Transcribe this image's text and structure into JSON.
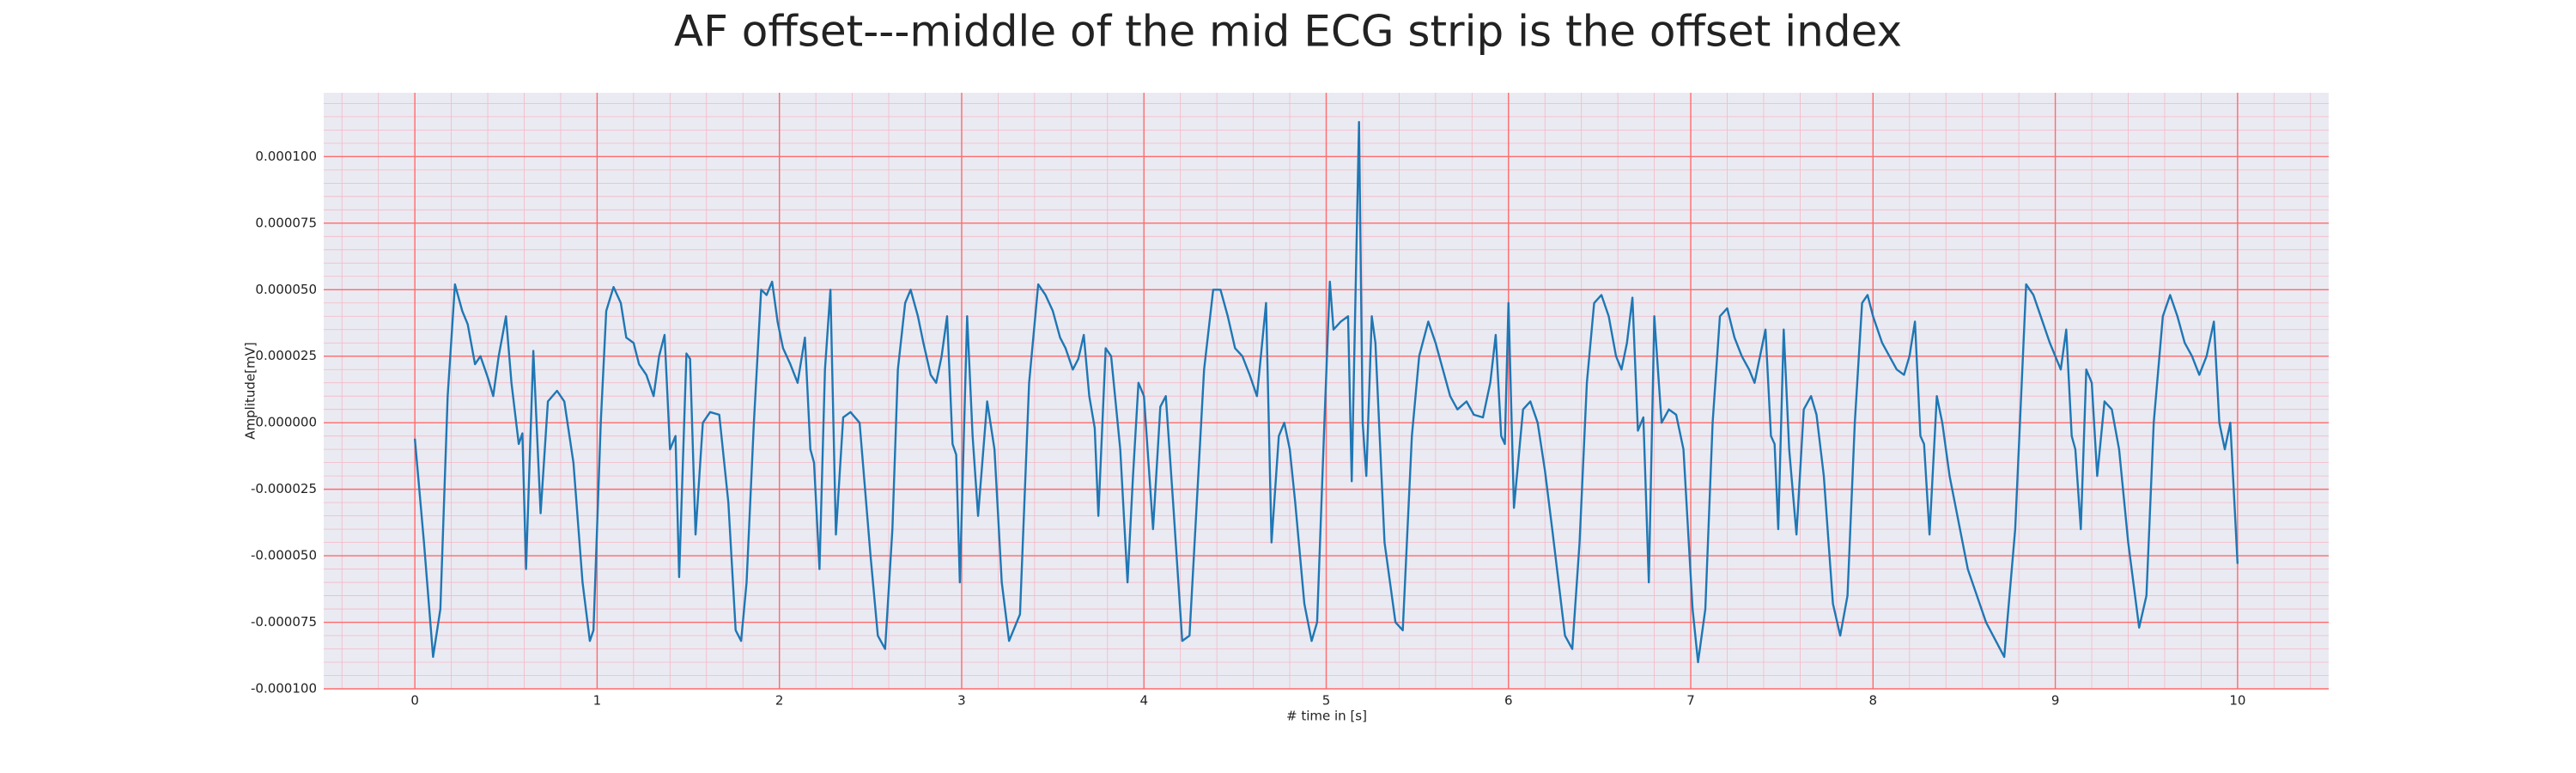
{
  "chart_data": {
    "type": "line",
    "title": "AF offset---middle of the mid ECG strip is the offset index",
    "xlabel": "# time in [s]",
    "ylabel": "Amplitude[mV]",
    "color": "#1f77b4",
    "background": "#eaeaf2",
    "grid": true,
    "grid_color": "#ff6b6b",
    "minor_grid": true,
    "minor_grid_color": "#f5b8c4",
    "minor_divisions": 5,
    "xlim": [
      -0.5,
      10.5
    ],
    "xticks": [
      0,
      1,
      2,
      3,
      4,
      5,
      6,
      7,
      8,
      9,
      10
    ],
    "ylim": [
      -0.0001,
      0.000124
    ],
    "yticks": [
      {
        "value": -0.0001,
        "label": "-0.000100"
      },
      {
        "value": -7.5e-05,
        "label": "-0.000075"
      },
      {
        "value": -5e-05,
        "label": "-0.000050"
      },
      {
        "value": -2.5e-05,
        "label": "-0.000025"
      },
      {
        "value": 0,
        "label": "0.000000"
      },
      {
        "value": 2.5e-05,
        "label": "0.000025"
      },
      {
        "value": 5e-05,
        "label": "0.000050"
      },
      {
        "value": 7.5e-05,
        "label": "0.000075"
      },
      {
        "value": 0.0001,
        "label": "0.000100"
      }
    ],
    "x": [
      0,
      0.05,
      0.1,
      0.14,
      0.18,
      0.22,
      0.26,
      0.29,
      0.33,
      0.36,
      0.4,
      0.43,
      0.46,
      0.5,
      0.53,
      0.57,
      0.59,
      0.61,
      0.65,
      0.69,
      0.73,
      0.78,
      0.82,
      0.87,
      0.92,
      0.96,
      0.98,
      1.02,
      1.05,
      1.09,
      1.13,
      1.16,
      1.2,
      1.23,
      1.27,
      1.31,
      1.34,
      1.37,
      1.4,
      1.43,
      1.45,
      1.49,
      1.51,
      1.54,
      1.58,
      1.62,
      1.67,
      1.72,
      1.76,
      1.79,
      1.82,
      1.86,
      1.9,
      1.93,
      1.96,
      1.99,
      2.02,
      2.06,
      2.1,
      2.14,
      2.17,
      2.19,
      2.22,
      2.25,
      2.28,
      2.31,
      2.35,
      2.39,
      2.44,
      2.5,
      2.54,
      2.58,
      2.62,
      2.65,
      2.69,
      2.72,
      2.76,
      2.79,
      2.83,
      2.86,
      2.89,
      2.92,
      2.95,
      2.97,
      2.99,
      3.03,
      3.06,
      3.09,
      3.14,
      3.18,
      3.22,
      3.26,
      3.32,
      3.37,
      3.42,
      3.46,
      3.5,
      3.54,
      3.57,
      3.61,
      3.64,
      3.67,
      3.7,
      3.73,
      3.75,
      3.79,
      3.82,
      3.87,
      3.91,
      3.94,
      3.97,
      4,
      4.03,
      4.05,
      4.09,
      4.12,
      4.16,
      4.21,
      4.25,
      4.29,
      4.33,
      4.38,
      4.42,
      4.46,
      4.5,
      4.54,
      4.58,
      4.62,
      4.67,
      4.7,
      4.74,
      4.77,
      4.8,
      4.83,
      4.88,
      4.92,
      4.95,
      4.99,
      5.02,
      5.04,
      5.08,
      5.12,
      5.14,
      5.18,
      5.2,
      5.22,
      5.25,
      5.27,
      5.32,
      5.38,
      5.42,
      5.47,
      5.51,
      5.56,
      5.6,
      5.64,
      5.68,
      5.72,
      5.77,
      5.81,
      5.86,
      5.9,
      5.93,
      5.96,
      5.98,
      6,
      6.03,
      6.08,
      6.12,
      6.16,
      6.2,
      6.24,
      6.31,
      6.35,
      6.39,
      6.43,
      6.47,
      6.51,
      6.55,
      6.59,
      6.62,
      6.65,
      6.68,
      6.71,
      6.74,
      6.77,
      6.8,
      6.84,
      6.88,
      6.92,
      6.96,
      7.01,
      7.04,
      7.08,
      7.12,
      7.16,
      7.2,
      7.24,
      7.28,
      7.32,
      7.35,
      7.38,
      7.41,
      7.44,
      7.46,
      7.48,
      7.51,
      7.54,
      7.58,
      7.62,
      7.66,
      7.69,
      7.73,
      7.78,
      7.82,
      7.86,
      7.9,
      7.94,
      7.97,
      8,
      8.05,
      8.09,
      8.13,
      8.17,
      8.2,
      8.23,
      8.26,
      8.28,
      8.31,
      8.35,
      8.38,
      8.42,
      8.52,
      8.62,
      8.72,
      8.78,
      8.84,
      8.88,
      8.93,
      8.97,
      9,
      9.03,
      9.06,
      9.09,
      9.11,
      9.14,
      9.17,
      9.2,
      9.23,
      9.27,
      9.31,
      9.35,
      9.4,
      9.46,
      9.5,
      9.54,
      9.59,
      9.63,
      9.67,
      9.71,
      9.75,
      9.79,
      9.83,
      9.87,
      9.9,
      9.93,
      9.96,
      10
    ],
    "values": [
      -6e-06,
      -4.5e-05,
      -8.8e-05,
      -7e-05,
      1e-05,
      5.2e-05,
      4.2e-05,
      3.7e-05,
      2.2e-05,
      2.5e-05,
      1.7e-05,
      1e-05,
      2.5e-05,
      4e-05,
      1.5e-05,
      -8e-06,
      -4e-06,
      -5.5e-05,
      2.7e-05,
      -3.4e-05,
      8e-06,
      1.2e-05,
      8e-06,
      -1.5e-05,
      -6e-05,
      -8.2e-05,
      -7.8e-05,
      0,
      4.2e-05,
      5.1e-05,
      4.5e-05,
      3.2e-05,
      3e-05,
      2.2e-05,
      1.8e-05,
      1e-05,
      2.5e-05,
      3.3e-05,
      -1e-05,
      -5e-06,
      -5.8e-05,
      2.6e-05,
      2.4e-05,
      -4.2e-05,
      0,
      4e-06,
      3e-06,
      -3e-05,
      -7.8e-05,
      -8.2e-05,
      -6e-05,
      0,
      5e-05,
      4.8e-05,
      5.3e-05,
      3.8e-05,
      2.8e-05,
      2.2e-05,
      1.5e-05,
      3.2e-05,
      -1e-05,
      -1.5e-05,
      -5.5e-05,
      2e-05,
      5e-05,
      -4.2e-05,
      2e-06,
      4e-06,
      0,
      -5e-05,
      -8e-05,
      -8.5e-05,
      -4e-05,
      2e-05,
      4.5e-05,
      5e-05,
      4e-05,
      3e-05,
      1.8e-05,
      1.5e-05,
      2.5e-05,
      4e-05,
      -8e-06,
      -1.2e-05,
      -6e-05,
      4e-05,
      -5e-06,
      -3.5e-05,
      8e-06,
      -1e-05,
      -6e-05,
      -8.2e-05,
      -7.2e-05,
      1.5e-05,
      5.2e-05,
      4.8e-05,
      4.2e-05,
      3.2e-05,
      2.8e-05,
      2e-05,
      2.4e-05,
      3.3e-05,
      1e-05,
      -2e-06,
      -3.5e-05,
      2.8e-05,
      2.5e-05,
      -1e-05,
      -6e-05,
      -2e-05,
      1.5e-05,
      1e-05,
      -2e-05,
      -4e-05,
      6e-06,
      1e-05,
      -3e-05,
      -8.2e-05,
      -8e-05,
      -3e-05,
      2e-05,
      5e-05,
      5e-05,
      4e-05,
      2.8e-05,
      2.5e-05,
      1.8e-05,
      1e-05,
      4.5e-05,
      -4.5e-05,
      -5e-06,
      0,
      -1e-05,
      -3e-05,
      -6.8e-05,
      -8.2e-05,
      -7.5e-05,
      0,
      5.3e-05,
      3.5e-05,
      3.8e-05,
      4e-05,
      -2.2e-05,
      0.000113,
      0,
      -2e-05,
      4e-05,
      3e-05,
      -4.5e-05,
      -7.5e-05,
      -7.8e-05,
      -5e-06,
      2.5e-05,
      3.8e-05,
      3e-05,
      2e-05,
      1e-05,
      5e-06,
      8e-06,
      3e-06,
      2e-06,
      1.5e-05,
      3.3e-05,
      -5e-06,
      -8e-06,
      4.5e-05,
      -3.2e-05,
      5e-06,
      8e-06,
      0,
      -1.8e-05,
      -4e-05,
      -8e-05,
      -8.5e-05,
      -4.5e-05,
      1.5e-05,
      4.5e-05,
      4.8e-05,
      4e-05,
      2.5e-05,
      2e-05,
      3e-05,
      4.7e-05,
      -3e-06,
      2e-06,
      -6e-05,
      4e-05,
      0,
      5e-06,
      3e-06,
      -1e-05,
      -7e-05,
      -9e-05,
      -7e-05,
      0,
      4e-05,
      4.3e-05,
      3.2e-05,
      2.5e-05,
      2e-05,
      1.5e-05,
      2.5e-05,
      3.5e-05,
      -5e-06,
      -8e-06,
      -4e-05,
      3.5e-05,
      -1e-05,
      -4.2e-05,
      5e-06,
      1e-05,
      3e-06,
      -2e-05,
      -6.8e-05,
      -8e-05,
      -6.5e-05,
      0,
      4.5e-05,
      4.8e-05,
      4e-05,
      3e-05,
      2.5e-05,
      2e-05,
      1.8e-05,
      2.5e-05,
      3.8e-05,
      -5e-06,
      -8e-06,
      -4.2e-05,
      1e-05,
      0,
      -2e-05,
      -5.5e-05,
      -7.5e-05,
      -8.8e-05,
      -4e-05,
      5.2e-05,
      4.8e-05,
      3.8e-05,
      3e-05,
      2.5e-05,
      2e-05,
      3.5e-05,
      -5e-06,
      -1e-05,
      -4e-05,
      2e-05,
      1.5e-05,
      -2e-05,
      8e-06,
      5e-06,
      -1e-05,
      -4.5e-05,
      -7.7e-05,
      -6.5e-05,
      0,
      4e-05,
      4.8e-05,
      4e-05,
      3e-05,
      2.5e-05,
      1.8e-05,
      2.5e-05,
      3.8e-05,
      0,
      -1e-05,
      0,
      -5.3e-05
    ]
  }
}
